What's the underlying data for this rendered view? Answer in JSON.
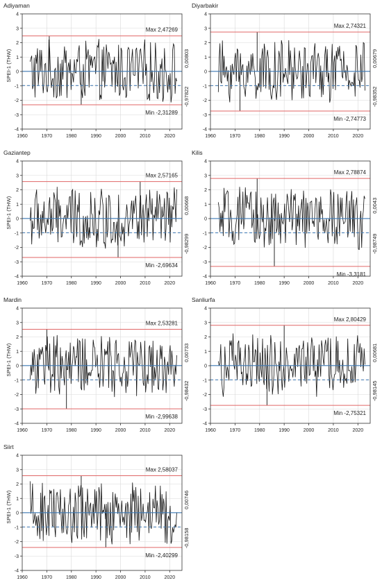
{
  "chart_data": [
    {
      "type": "line",
      "title": "Adiyaman",
      "ylabel": "SPEI-1 (THW)",
      "xlim": [
        1960,
        2025
      ],
      "ylim": [
        -4,
        4
      ],
      "x_ticks": [
        1960,
        1970,
        1980,
        1990,
        2000,
        2010,
        2020
      ],
      "y_ticks": [
        -4,
        -3,
        -2,
        -1,
        0,
        1,
        2,
        3,
        4
      ],
      "grid": true,
      "series_range": [
        1963,
        2022
      ],
      "max_label": "Max 2,47269",
      "min_label": "Min -2,31289",
      "max_value": 2.47269,
      "min_value": -2.31289,
      "max_year": 1971,
      "min_year": 1984,
      "right_upper_label": "0,00803",
      "right_lower_label": "-0,97822",
      "right_upper_value": 0.00803,
      "right_lower_value": -0.97822,
      "colors": {
        "limits": "#e06666",
        "zero": "#3c78b4",
        "series": "#111111",
        "grid": "#d9d9d9"
      }
    },
    {
      "type": "line",
      "title": "Diyarbakir",
      "ylabel": "",
      "xlim": [
        1960,
        2025
      ],
      "ylim": [
        -4,
        4
      ],
      "x_ticks": [
        1960,
        1970,
        1980,
        1990,
        2000,
        2010,
        2020
      ],
      "y_ticks": [
        -4,
        -3,
        -2,
        -1,
        0,
        1,
        2,
        3,
        4
      ],
      "grid": true,
      "series_range": [
        1963,
        2022
      ],
      "max_label": "Max 2,74321",
      "min_label": "Min -2,74773",
      "max_value": 2.74321,
      "min_value": -2.74773,
      "max_year": 1979,
      "min_year": 1972,
      "right_upper_label": "0,00679",
      "right_lower_label": "-0,98352",
      "right_upper_value": 0.00679,
      "right_lower_value": -0.98352,
      "colors": {
        "limits": "#e06666",
        "zero": "#3c78b4",
        "series": "#111111",
        "grid": "#d9d9d9"
      }
    },
    {
      "type": "line",
      "title": "Gaziantep",
      "ylabel": "SPEI-1 (THW)",
      "xlim": [
        1960,
        2025
      ],
      "ylim": [
        -4,
        4
      ],
      "x_ticks": [
        1960,
        1970,
        1980,
        1990,
        2000,
        2010,
        2020
      ],
      "y_ticks": [
        -4,
        -3,
        -2,
        -1,
        0,
        1,
        2,
        3,
        4
      ],
      "grid": true,
      "series_range": [
        1963,
        2022
      ],
      "max_label": "Max 2,57165",
      "min_label": "Min -2,69634",
      "max_value": 2.57165,
      "min_value": -2.69634,
      "max_year": 2008,
      "min_year": 1999,
      "right_upper_label": "0,00668",
      "right_lower_label": "-0,98299",
      "right_upper_value": 0.00668,
      "right_lower_value": -0.98299,
      "colors": {
        "limits": "#e06666",
        "zero": "#3c78b4",
        "series": "#111111",
        "grid": "#d9d9d9"
      }
    },
    {
      "type": "line",
      "title": "Kilis",
      "ylabel": "",
      "xlim": [
        1960,
        2025
      ],
      "ylim": [
        -4,
        4
      ],
      "x_ticks": [
        1960,
        1970,
        1980,
        1990,
        2000,
        2010,
        2020
      ],
      "y_ticks": [
        -4,
        -3,
        -2,
        -1,
        0,
        1,
        2,
        3,
        4
      ],
      "grid": true,
      "series_range": [
        1963,
        2022
      ],
      "max_label": "Max 2,78874",
      "min_label": "Min -3,3181",
      "max_value": 2.78874,
      "min_value": -3.3181,
      "max_year": 1979,
      "min_year": 1986,
      "right_upper_label": "0,0043",
      "right_lower_label": "-0,98749",
      "right_upper_value": 0.0043,
      "right_lower_value": -0.98749,
      "colors": {
        "limits": "#e06666",
        "zero": "#3c78b4",
        "series": "#111111",
        "grid": "#d9d9d9"
      }
    },
    {
      "type": "line",
      "title": "Mardin",
      "ylabel": "SPEI-1 (THW)",
      "xlim": [
        1960,
        2025
      ],
      "ylim": [
        -4,
        4
      ],
      "x_ticks": [
        1960,
        1970,
        1980,
        1990,
        2000,
        2010,
        2020
      ],
      "y_ticks": [
        -4,
        -3,
        -2,
        -1,
        0,
        1,
        2,
        3,
        4
      ],
      "grid": true,
      "series_range": [
        1963,
        2022
      ],
      "max_label": "Max 2,53281",
      "min_label": "Min -2,99638",
      "max_value": 2.53281,
      "min_value": -2.99638,
      "max_year": 1970,
      "min_year": 1978,
      "right_upper_label": "0,00733",
      "right_lower_label": "-0,98432",
      "right_upper_value": 0.00733,
      "right_lower_value": -0.98432,
      "colors": {
        "limits": "#e06666",
        "zero": "#3c78b4",
        "series": "#111111",
        "grid": "#d9d9d9"
      }
    },
    {
      "type": "line",
      "title": "Sanliurfa",
      "ylabel": "",
      "xlim": [
        1960,
        2025
      ],
      "ylim": [
        -4,
        4
      ],
      "x_ticks": [
        1960,
        1970,
        1980,
        1990,
        2000,
        2010,
        2020
      ],
      "y_ticks": [
        -4,
        -3,
        -2,
        -1,
        0,
        1,
        2,
        3,
        4
      ],
      "grid": true,
      "series_range": [
        1963,
        2022
      ],
      "max_label": "Max 2,80429",
      "min_label": "Min -2,75321",
      "max_value": 2.80429,
      "min_value": -2.75321,
      "max_year": 1990,
      "min_year": 1983,
      "right_upper_label": "0,00681",
      "right_lower_label": "-0,98145",
      "right_upper_value": 0.00681,
      "right_lower_value": -0.98145,
      "colors": {
        "limits": "#e06666",
        "zero": "#3c78b4",
        "series": "#111111",
        "grid": "#d9d9d9"
      }
    },
    {
      "type": "line",
      "title": "Siirt",
      "ylabel": "SPEI-1 (THW)",
      "xlim": [
        1960,
        2025
      ],
      "ylim": [
        -4,
        4
      ],
      "x_ticks": [
        1960,
        1970,
        1980,
        1990,
        2000,
        2010,
        2020
      ],
      "y_ticks": [
        -4,
        -3,
        -2,
        -1,
        0,
        1,
        2,
        3,
        4
      ],
      "grid": true,
      "series_range": [
        1963,
        2022
      ],
      "max_label": "Max 2,58037",
      "min_label": "Min -2,40299",
      "max_value": 2.58037,
      "min_value": -2.40299,
      "max_year": 1984,
      "min_year": 1994,
      "right_upper_label": "0,00746",
      "right_lower_label": "-0,98158",
      "right_upper_value": 0.00746,
      "right_lower_value": -0.98158,
      "colors": {
        "limits": "#e06666",
        "zero": "#3c78b4",
        "series": "#111111",
        "grid": "#d9d9d9"
      }
    }
  ]
}
